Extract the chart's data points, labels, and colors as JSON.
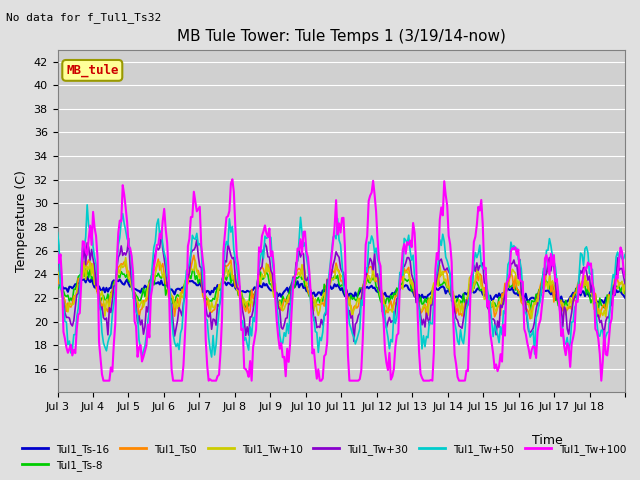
{
  "title": "MB Tule Tower: Tule Temps 1 (3/19/14-now)",
  "subtitle": "No data for f_Tul1_Ts32",
  "ylabel": "Temperature (C)",
  "xlabel": "Time",
  "background_color": "#e0e0e0",
  "plot_bg_color": "#d0d0d0",
  "ylim": [
    14,
    43
  ],
  "yticks": [
    16,
    18,
    20,
    22,
    24,
    26,
    28,
    30,
    32,
    34,
    36,
    38,
    40,
    42
  ],
  "x_labels": [
    "Jul 3",
    "Jul 4",
    "Jul 5",
    "Jul 6",
    "Jul 7",
    "Jul 8",
    "Jul 9",
    "Jul 10",
    "Jul 11",
    "Jul 12",
    "Jul 13",
    "Jul 14",
    "Jul 15",
    "Jul 16",
    "Jul 17",
    "Jul 18"
  ],
  "series": {
    "Tul1_Ts-16": {
      "color": "#0000cc",
      "linewidth": 1.5
    },
    "Tul1_Ts-8": {
      "color": "#00cc00",
      "linewidth": 1.2
    },
    "Tul1_Ts0": {
      "color": "#ff8800",
      "linewidth": 1.2
    },
    "Tul1_Tw+10": {
      "color": "#cccc00",
      "linewidth": 1.2
    },
    "Tul1_Tw+30": {
      "color": "#8800cc",
      "linewidth": 1.2
    },
    "Tul1_Tw+50": {
      "color": "#00cccc",
      "linewidth": 1.2
    },
    "Tul1_Tw+100": {
      "color": "#ff00ff",
      "linewidth": 1.5
    }
  },
  "legend_box": {
    "label": "MB_tule",
    "facecolor": "#ffff99",
    "edgecolor": "#999900",
    "textcolor": "#cc0000"
  },
  "title_fontsize": 11,
  "axis_fontsize": 9,
  "tick_fontsize": 8
}
